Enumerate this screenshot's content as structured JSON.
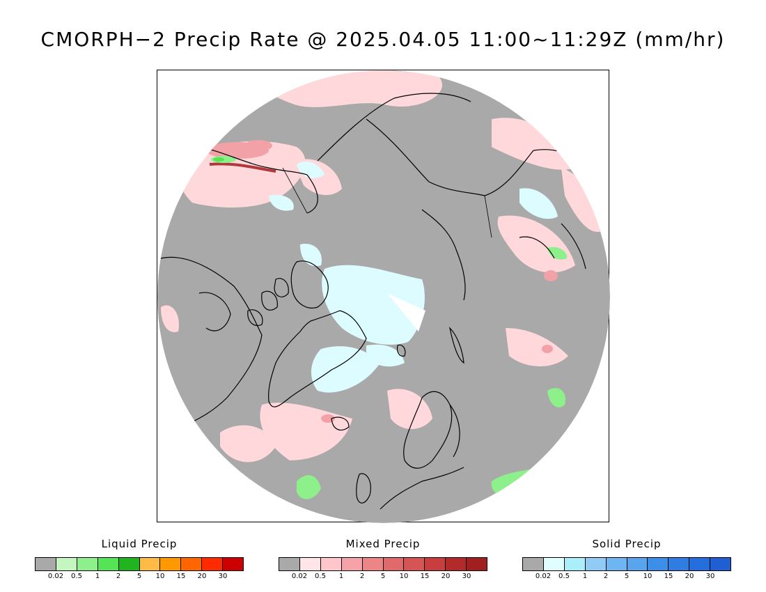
{
  "title": "CMORPH−2 Precip Rate @ 2025.04.05 11:00~11:29Z (mm/hr)",
  "map": {
    "projection": "north polar stereographic",
    "no_precip_color": "#a9a9a9",
    "coastline_color": "#000000"
  },
  "legends": [
    {
      "id": "liquid",
      "title": "Liquid Precip",
      "colors": [
        "#a9a9a9",
        "#c4f7c0",
        "#8ef08a",
        "#55e455",
        "#20b520",
        "#ffbb44",
        "#ff9900",
        "#ff6600",
        "#ff2a00",
        "#cc0000"
      ],
      "ticks": [
        "0.02",
        "0.5",
        "1",
        "2",
        "5",
        "10",
        "15",
        "20",
        "30"
      ]
    },
    {
      "id": "mixed",
      "title": "Mixed Precip",
      "colors": [
        "#a9a9a9",
        "#ffe4e8",
        "#ffc6cc",
        "#f5a3a8",
        "#ec8585",
        "#e06a6a",
        "#d55555",
        "#c83e3e",
        "#b22a2a",
        "#a01f1f"
      ],
      "ticks": [
        "0.02",
        "0.5",
        "1",
        "2",
        "5",
        "10",
        "15",
        "20",
        "30"
      ]
    },
    {
      "id": "solid",
      "title": "Solid Precip",
      "colors": [
        "#a9a9a9",
        "#e0feff",
        "#aaeefa",
        "#8fcbf5",
        "#6eb6f2",
        "#58a5ee",
        "#3c8fe6",
        "#2f7de0",
        "#246ddc",
        "#1f5fd2"
      ],
      "ticks": [
        "0.02",
        "0.5",
        "1",
        "2",
        "5",
        "10",
        "15",
        "20",
        "30"
      ]
    }
  ]
}
